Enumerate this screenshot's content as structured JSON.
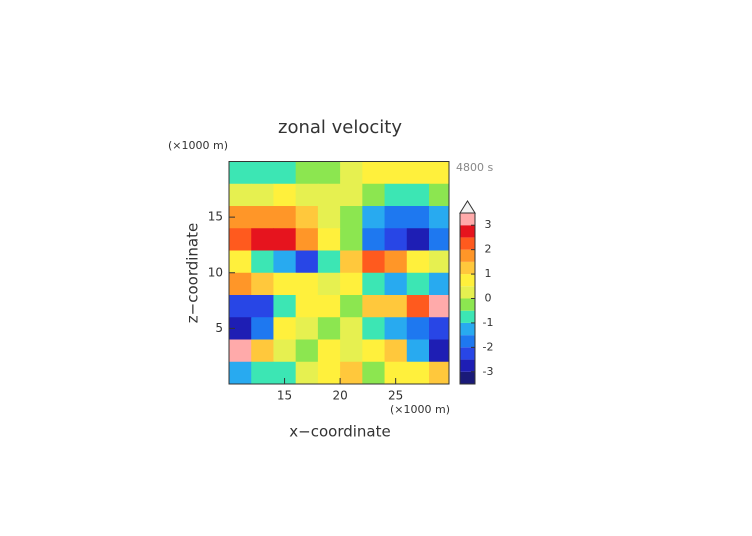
{
  "chart_data": {
    "type": "heatmap",
    "title": "zonal velocity",
    "time_label": "4800 s",
    "x_unit": "(×1000 m)",
    "y_unit": "(×1000 m)",
    "xlabel": "x−coordinate",
    "ylabel": "z−coordinate",
    "xlim": [
      10,
      29.8
    ],
    "ylim": [
      0,
      20
    ],
    "xticks": [
      15,
      20,
      25
    ],
    "yticks": [
      5,
      10,
      15
    ],
    "x": [
      11,
      13,
      15,
      17,
      19,
      21,
      23,
      25,
      27,
      29
    ],
    "z": [
      19,
      17,
      15,
      13,
      11,
      9,
      7,
      5,
      3,
      1
    ],
    "values": [
      [
        -0.8,
        -0.8,
        -0.7,
        -0.5,
        -0.3,
        0.3,
        0.7,
        0.9,
        0.8,
        0.6
      ],
      [
        0.3,
        0.4,
        0.5,
        0.4,
        0.2,
        0.2,
        -0.5,
        -0.8,
        -0.7,
        -0.5
      ],
      [
        1.5,
        1.8,
        1.6,
        1.0,
        0.4,
        -0.3,
        -1.2,
        -1.8,
        -1.8,
        -1.2
      ],
      [
        2.2,
        2.8,
        2.6,
        1.5,
        0.5,
        -0.5,
        -1.8,
        -2.5,
        -2.6,
        -1.8
      ],
      [
        0.5,
        -0.8,
        -1.5,
        -2.2,
        -1.0,
        1.0,
        2.2,
        1.6,
        0.8,
        0.3
      ],
      [
        1.5,
        1.2,
        0.5,
        0.8,
        0.3,
        0.6,
        -0.6,
        -1.2,
        -0.8,
        -1.5
      ],
      [
        -2.5,
        -2.2,
        -1.0,
        0.8,
        0.5,
        -0.2,
        1.0,
        1.4,
        2.2,
        3.0
      ],
      [
        -3.0,
        -2.0,
        0.7,
        0.2,
        -0.5,
        0.4,
        -0.8,
        -1.5,
        -1.8,
        -2.2
      ],
      [
        3.2,
        1.0,
        0.3,
        -0.5,
        0.5,
        0.3,
        0.8,
        1.2,
        -1.5,
        -3.0
      ],
      [
        -1.2,
        -0.8,
        -0.6,
        0.2,
        0.8,
        1.0,
        -0.5,
        0.5,
        0.6,
        1.3
      ]
    ],
    "levels": [
      -3.5,
      -3,
      -2.5,
      -2,
      -1.5,
      -1,
      -0.5,
      0,
      0.5,
      1,
      1.5,
      2,
      2.5,
      3,
      3.5
    ],
    "colors": [
      "#1a1a78",
      "#1e1eb4",
      "#2846e6",
      "#1e78f0",
      "#28aaf0",
      "#3ce6b4",
      "#8ce650",
      "#e6f050",
      "#fff03c",
      "#ffc83c",
      "#ff9628",
      "#ff5a1e",
      "#e6141e",
      "#ffaaaa"
    ],
    "extend_color": "#f4f4f4",
    "cbar_ticks": [
      -3,
      -2,
      -1,
      0,
      1,
      2,
      3
    ]
  }
}
